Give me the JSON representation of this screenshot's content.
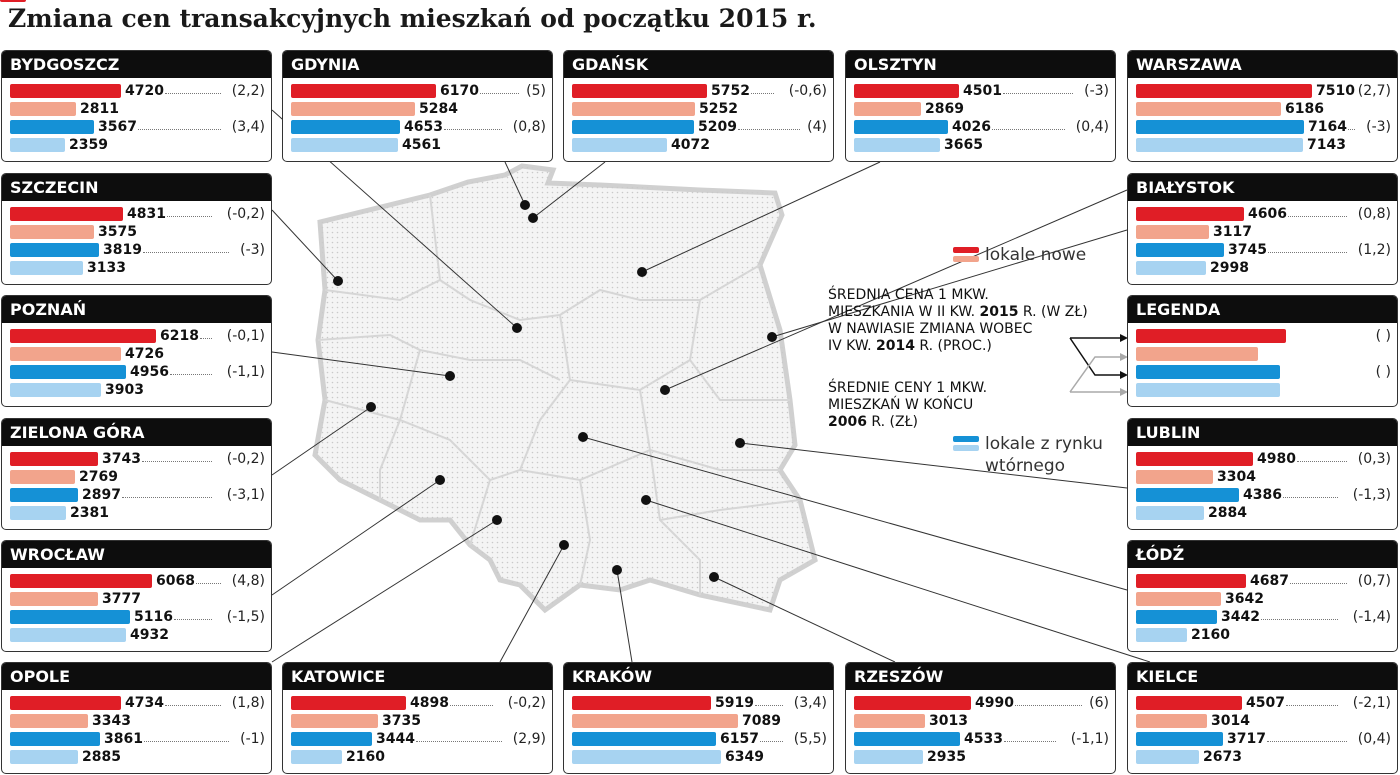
{
  "title": "Zmiana cen transakcyjnych mieszkań od początku 2015 r.",
  "colors": {
    "new_2015": "#e01e26",
    "new_2006": "#f2a48c",
    "secondary_2015": "#1591d6",
    "secondary_2006": "#a7d3f1"
  },
  "key": {
    "new_label": "lokale nowe",
    "secondary_label_1": "lokale z rynku",
    "secondary_label_2": "wtórnego"
  },
  "legend": {
    "title": "LEGENDA",
    "paren_label": "( )",
    "text1_l1": "ŚREDNIA CENA 1 MKW.",
    "text1_l2a": "MIESZKANIA W II KW. ",
    "text1_l2b": "2015",
    "text1_l2c": " R. (W ZŁ)",
    "text1_l3": "W NAWIASIE ZMIANA WOBEC",
    "text1_l4a": "IV KW. ",
    "text1_l4b": "2014",
    "text1_l4c": " R. (PROC.)",
    "text2_l1": "ŚREDNIE CENY 1 MKW.",
    "text2_l2": "MIESZKAŃ W KOŃCU",
    "text2_l3a": "2006",
    "text2_l3b": " R. (ZŁ)"
  },
  "chart_data": {
    "type": "bar",
    "title": "Zmiana cen transakcyjnych mieszkań od początku 2015 r.",
    "unit": "zł / mkw.",
    "series_names": [
      "lokale nowe II kw. 2015",
      "lokale nowe koniec 2006",
      "rynek wtórny II kw. 2015",
      "rynek wtórny koniec 2006"
    ],
    "cities": [
      {
        "name": "BYDGOSZCZ",
        "values": [
          4720,
          2811,
          3567,
          2359
        ],
        "changes": [
          "(2,2)",
          "(3,4)"
        ]
      },
      {
        "name": "GDYNIA",
        "values": [
          6170,
          5284,
          4653,
          4561
        ],
        "changes": [
          "(5)",
          "(0,8)"
        ]
      },
      {
        "name": "GDAŃSK",
        "values": [
          5752,
          5252,
          5209,
          4072
        ],
        "changes": [
          "(-0,6)",
          "(4)"
        ]
      },
      {
        "name": "OLSZTYN",
        "values": [
          4501,
          2869,
          4026,
          3665
        ],
        "changes": [
          "(-3)",
          "(0,4)"
        ]
      },
      {
        "name": "WARSZAWA",
        "values": [
          7510,
          6186,
          7164,
          7143
        ],
        "changes": [
          "(2,7)",
          "(-3)"
        ]
      },
      {
        "name": "SZCZECIN",
        "values": [
          4831,
          3575,
          3819,
          3133
        ],
        "changes": [
          "(-0,2)",
          "(-3)"
        ]
      },
      {
        "name": "BIAŁYSTOK",
        "values": [
          4606,
          3117,
          3745,
          2998
        ],
        "changes": [
          "(0,8)",
          "(1,2)"
        ]
      },
      {
        "name": "POZNAŃ",
        "values": [
          6218,
          4726,
          4956,
          3903
        ],
        "changes": [
          "(-0,1)",
          "(-1,1)"
        ]
      },
      {
        "name": "ZIELONA GÓRA",
        "values": [
          3743,
          2769,
          2897,
          2381
        ],
        "changes": [
          "(-0,2)",
          "(-3,1)"
        ]
      },
      {
        "name": "LUBLIN",
        "values": [
          4980,
          3304,
          4386,
          2884
        ],
        "changes": [
          "(0,3)",
          "(-1,3)"
        ]
      },
      {
        "name": "WROCŁAW",
        "values": [
          6068,
          3777,
          5116,
          4932
        ],
        "changes": [
          "(4,8)",
          "(-1,5)"
        ]
      },
      {
        "name": "ŁÓDŹ",
        "values": [
          4687,
          3642,
          3442,
          2160
        ],
        "changes": [
          "(0,7)",
          "(-1,4)"
        ]
      },
      {
        "name": "OPOLE",
        "values": [
          4734,
          3343,
          3861,
          2885
        ],
        "changes": [
          "(1,8)",
          "(-1)"
        ]
      },
      {
        "name": "KATOWICE",
        "values": [
          4898,
          3735,
          3444,
          2160
        ],
        "changes": [
          "(-0,2)",
          "(2,9)"
        ]
      },
      {
        "name": "KRAKÓW",
        "values": [
          5919,
          7089,
          6157,
          6349
        ],
        "changes": [
          "(3,4)",
          "(5,5)"
        ]
      },
      {
        "name": "RZESZÓW",
        "values": [
          4990,
          3013,
          4533,
          2935
        ],
        "changes": [
          "(6)",
          "(-1,1)"
        ]
      },
      {
        "name": "KIELCE",
        "values": [
          4507,
          3014,
          3717,
          2673
        ],
        "changes": [
          "(-2,1)",
          "(0,4)"
        ]
      }
    ]
  }
}
